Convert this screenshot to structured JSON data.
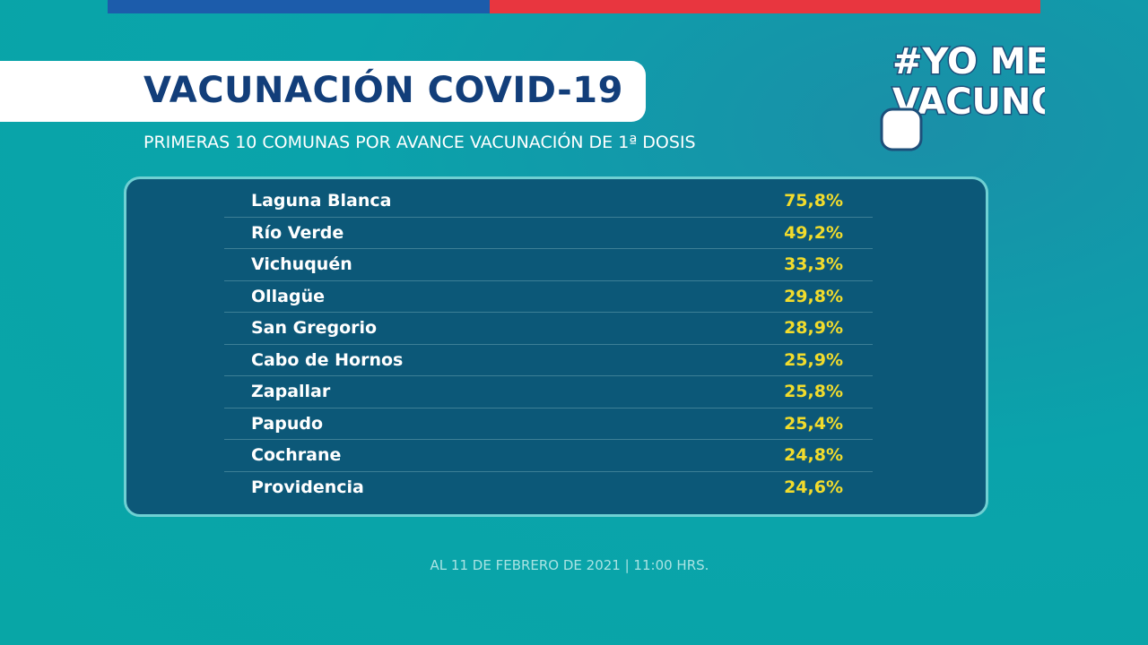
{
  "header": {
    "title": "VACUNACIÓN COVID-19",
    "subtitle": "PRIMERAS 10 COMUNAS POR AVANCE VACUNACIÓN DE 1ª DOSIS"
  },
  "logo": {
    "line1": "#YO ME",
    "line2": "VACUNO"
  },
  "table": {
    "rows": [
      [
        "Laguna Blanca",
        "75,8%"
      ],
      [
        "Río Verde",
        "49,2%"
      ],
      [
        "Vichuquén",
        "33,3%"
      ],
      [
        "Ollagüe",
        "29,8%"
      ],
      [
        "San Gregorio",
        "28,9%"
      ],
      [
        "Cabo de Hornos",
        "25,9%"
      ],
      [
        "Zapallar",
        "25,8%"
      ],
      [
        "Papudo",
        "25,4%"
      ],
      [
        "Cochrane",
        "24,8%"
      ],
      [
        "Providencia",
        "24,6%"
      ]
    ]
  },
  "footer": "AL 11 DE FEBRERO DE 2021 | 11:00 HRS."
}
